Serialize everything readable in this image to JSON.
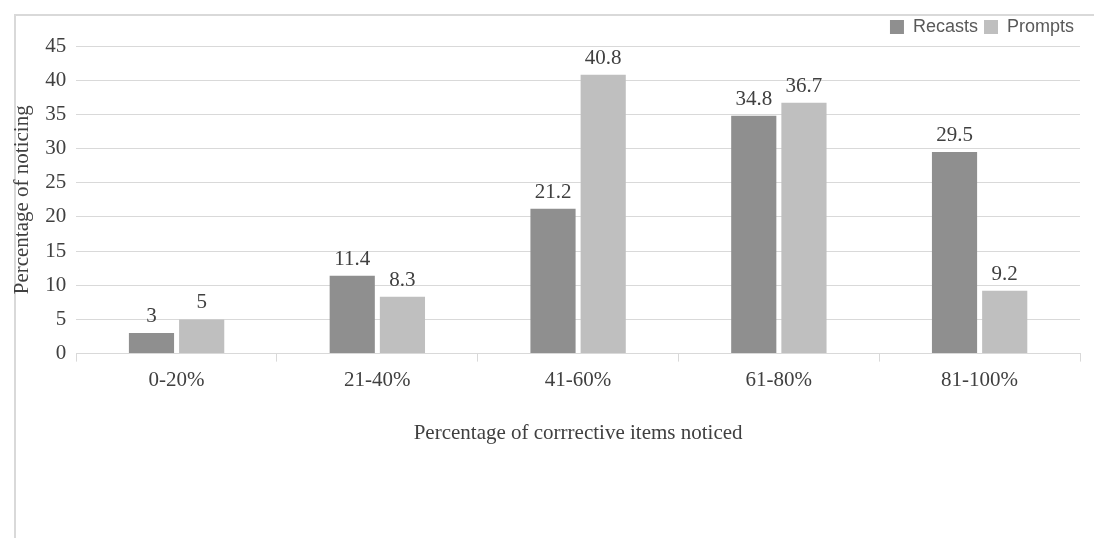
{
  "chart_data": {
    "type": "bar",
    "xlabel": "Percentage of corrrective items noticed",
    "ylabel": "Percentage of noticing",
    "categories": [
      "0-20%",
      "21-40%",
      "41-60%",
      "61-80%",
      "81-100%"
    ],
    "series": [
      {
        "name": "Recasts",
        "color": "#8f8f8f",
        "values": [
          3,
          11.4,
          21.2,
          34.8,
          29.5
        ]
      },
      {
        "name": "Prompts",
        "color": "#bfbfbf",
        "values": [
          5,
          8.3,
          40.8,
          36.7,
          9.2
        ]
      }
    ],
    "ylim": [
      0,
      45
    ],
    "yticks": [
      0,
      5,
      10,
      15,
      20,
      25,
      30,
      35,
      40,
      45
    ],
    "grid": "y",
    "legend": "top right",
    "data_labels": true
  }
}
